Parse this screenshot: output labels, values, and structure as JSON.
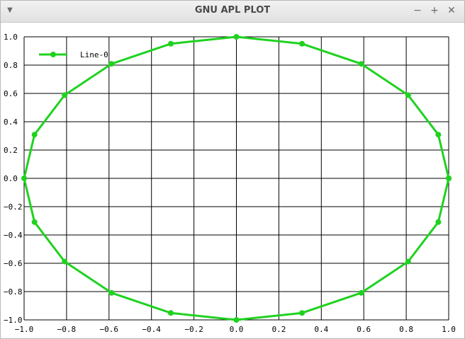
{
  "window": {
    "title": "GNU APL PLOT",
    "menu_icon": "triangle-down-icon",
    "minimize_icon": "minus-icon",
    "maximize_icon": "plus-icon",
    "close_icon": "close-icon"
  },
  "chart_data": {
    "type": "line",
    "title": "",
    "xlabel": "",
    "ylabel": "",
    "xlim": [
      -1.0,
      1.0
    ],
    "ylim": [
      -1.0,
      1.0
    ],
    "x_ticks": [
      "−1.0",
      "−0.8",
      "−0.6",
      "−0.4",
      "−0.2",
      "0.0",
      "0.2",
      "0.4",
      "0.6",
      "0.8",
      "1.0"
    ],
    "y_ticks": [
      "1.0",
      "0.8",
      "0.6",
      "0.4",
      "0.2",
      "0.0",
      "−0.2",
      "−0.4",
      "−0.6",
      "−0.8",
      "−1.0"
    ],
    "grid": true,
    "legend": "top-left",
    "series": [
      {
        "name": "Line-0",
        "color": "#1fd21f",
        "x": [
          1.0,
          0.951,
          0.809,
          0.588,
          0.309,
          0.0,
          -0.309,
          -0.588,
          -0.809,
          -0.951,
          -1.0,
          -0.951,
          -0.809,
          -0.588,
          -0.309,
          0.0,
          0.309,
          0.588,
          0.809,
          0.951,
          1.0
        ],
        "y": [
          0.0,
          0.309,
          0.588,
          0.809,
          0.951,
          1.0,
          0.951,
          0.809,
          0.588,
          0.309,
          0.0,
          -0.309,
          -0.588,
          -0.809,
          -0.951,
          -1.0,
          -0.951,
          -0.809,
          -0.588,
          -0.309,
          0.0
        ]
      }
    ]
  }
}
